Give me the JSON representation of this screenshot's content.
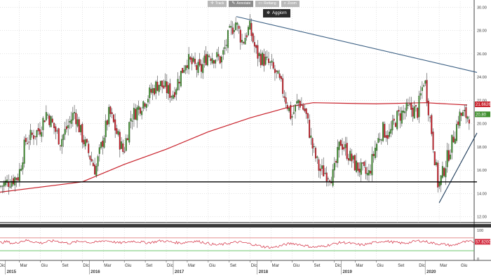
{
  "toolbar": {
    "buttons": [
      {
        "label": "Track",
        "icon": "crosshair-icon"
      },
      {
        "label": "Annotate",
        "icon": "pencil-icon"
      },
      {
        "label": "Rettang",
        "icon": "rectangle-icon"
      },
      {
        "label": "Zoom",
        "icon": "zoom-icon"
      }
    ],
    "update_label": "Aggiorn"
  },
  "colors": {
    "up": "#3f8f2f",
    "down": "#c8202a",
    "ma": "#c8202a",
    "trend": "#3b5f83",
    "support": "#000000",
    "grid": "#c8c8c8",
    "rsi": "#d2283c",
    "rsi_upper": "#e08080",
    "rsi_lower": "#5cc05c"
  },
  "chart_data": [
    {
      "type": "candlestick",
      "title": "",
      "y_axis_side": "right",
      "ylim": [
        11.5,
        30.5
      ],
      "y_ticks": [
        "12.00",
        "14.00",
        "16.00",
        "18.00",
        "20.00",
        "22.00",
        "24.00",
        "26.00",
        "28.00",
        "30.00"
      ],
      "x_ticks": [
        "Dic",
        "Mar",
        "Giu",
        "Set",
        "Dic",
        "Mar",
        "Giu",
        "Set",
        "Dic",
        "Mar",
        "Giu",
        "Set",
        "Dic",
        "Mar",
        "Giu",
        "Set",
        "Dic",
        "Mar",
        "Giu"
      ],
      "x_tick_dates": [
        "2014-12",
        "2015-03",
        "2015-06",
        "2015-09",
        "2015-12",
        "2016-03",
        "2016-06",
        "2016-09",
        "2016-12",
        "2017-03",
        "2017-06",
        "2017-09",
        "2017-12",
        "2018-03",
        "2018-06",
        "2018-09",
        "2018-12",
        "2019-03",
        "2019-06"
      ],
      "year_labels": [
        "2015",
        "2016",
        "2017",
        "2018",
        "2019",
        "2020"
      ],
      "price_path": [
        {
          "date": "2014-12",
          "value": 14.5
        },
        {
          "date": "2015-03",
          "value": 15.5
        },
        {
          "date": "2015-04",
          "value": 18.5
        },
        {
          "date": "2015-06",
          "value": 19.5
        },
        {
          "date": "2015-07",
          "value": 21.0
        },
        {
          "date": "2015-09",
          "value": 18.5
        },
        {
          "date": "2015-11",
          "value": 21.0
        },
        {
          "date": "2015-12",
          "value": 19.0
        },
        {
          "date": "2016-02",
          "value": 16.0
        },
        {
          "date": "2016-03",
          "value": 18.5
        },
        {
          "date": "2016-04",
          "value": 21.0
        },
        {
          "date": "2016-06",
          "value": 17.5
        },
        {
          "date": "2016-07",
          "value": 20.5
        },
        {
          "date": "2016-09",
          "value": 22.0
        },
        {
          "date": "2016-11",
          "value": 23.5
        },
        {
          "date": "2017-01",
          "value": 22.5
        },
        {
          "date": "2017-03",
          "value": 25.5
        },
        {
          "date": "2017-05",
          "value": 24.5
        },
        {
          "date": "2017-06",
          "value": 26.0
        },
        {
          "date": "2017-08",
          "value": 25.5
        },
        {
          "date": "2017-09",
          "value": 27.5
        },
        {
          "date": "2017-10",
          "value": 28.8
        },
        {
          "date": "2017-11",
          "value": 27.0
        },
        {
          "date": "2017-12",
          "value": 28.3
        },
        {
          "date": "2018-01",
          "value": 26.0
        },
        {
          "date": "2018-03",
          "value": 25.0
        },
        {
          "date": "2018-04",
          "value": 24.0
        },
        {
          "date": "2018-05",
          "value": 22.5
        },
        {
          "date": "2018-06",
          "value": 20.5
        },
        {
          "date": "2018-07",
          "value": 22.0
        },
        {
          "date": "2018-08",
          "value": 21.0
        },
        {
          "date": "2018-09",
          "value": 18.0
        },
        {
          "date": "2018-10",
          "value": 16.0
        },
        {
          "date": "2018-12",
          "value": 15.5
        },
        {
          "date": "2019-01",
          "value": 18.5
        },
        {
          "date": "2019-03",
          "value": 16.5
        },
        {
          "date": "2019-05",
          "value": 15.5
        },
        {
          "date": "2019-06",
          "value": 18.0
        },
        {
          "date": "2019-07",
          "value": 19.5
        },
        {
          "date": "2019-08",
          "value": 19.0
        },
        {
          "date": "2019-09",
          "value": 20.5
        },
        {
          "date": "2019-10",
          "value": 21.0
        },
        {
          "date": "2019-11",
          "value": 21.3
        },
        {
          "date": "2019-12",
          "value": 21.0
        },
        {
          "date": "2020-01",
          "value": 24.0
        },
        {
          "date": "2020-02",
          "value": 19.5
        },
        {
          "date": "2020-03",
          "value": 14.5
        },
        {
          "date": "2020-04",
          "value": 16.5
        },
        {
          "date": "2020-05",
          "value": 18.5
        },
        {
          "date": "2020-06",
          "value": 20.7
        }
      ],
      "moving_average": [
        {
          "date": "2014-12",
          "value": 14.1
        },
        {
          "date": "2015-12",
          "value": 15.0
        },
        {
          "date": "2016-06",
          "value": 16.5
        },
        {
          "date": "2016-12",
          "value": 17.8
        },
        {
          "date": "2017-06",
          "value": 19.3
        },
        {
          "date": "2017-12",
          "value": 20.5
        },
        {
          "date": "2018-06",
          "value": 21.5
        },
        {
          "date": "2018-09",
          "value": 21.8
        },
        {
          "date": "2019-06",
          "value": 21.7
        },
        {
          "date": "2020-01",
          "value": 21.8
        },
        {
          "date": "2020-07",
          "value": 21.6
        }
      ],
      "trendlines": [
        {
          "name": "resistance",
          "start": {
            "date": "2017-10",
            "value": 29.2
          },
          "end": {
            "date": "2020-08",
            "value": 24.4
          }
        },
        {
          "name": "support-rising",
          "start": {
            "date": "2020-03",
            "value": 13.2
          },
          "end": {
            "date": "2020-08",
            "value": 19.2
          }
        },
        {
          "name": "support-horizontal",
          "start": {
            "date": "2014-12",
            "value": 15.0
          },
          "end": {
            "date": "2020-08",
            "value": 15.0
          }
        }
      ],
      "last_value_tags": [
        {
          "label": "21.6626",
          "value": 21.66,
          "color": "#c8202a"
        },
        {
          "label": "20.80",
          "value": 20.8,
          "color": "#3f8f2f"
        }
      ]
    },
    {
      "type": "line",
      "title": "",
      "ylim": [
        0,
        100
      ],
      "y_ticks": [
        "100",
        "0"
      ],
      "reference_lines": [
        70,
        30
      ],
      "last_value_tag": "57.8200",
      "series": [
        {
          "values": [
            55,
            58,
            52,
            60,
            62,
            57,
            54,
            59,
            61,
            56,
            53,
            58,
            60,
            55,
            57,
            62,
            59,
            54,
            56,
            60,
            58,
            55,
            57,
            61,
            59,
            56,
            54,
            58,
            60,
            57,
            52,
            48,
            50,
            54,
            57,
            55,
            51,
            46,
            42,
            40,
            44,
            50,
            53,
            49,
            45,
            41,
            43,
            47,
            52,
            56,
            54,
            50,
            48,
            52,
            57,
            60,
            58,
            55,
            53,
            57,
            61,
            59,
            54,
            51,
            49,
            46,
            55,
            58,
            57.8
          ]
        }
      ]
    }
  ]
}
